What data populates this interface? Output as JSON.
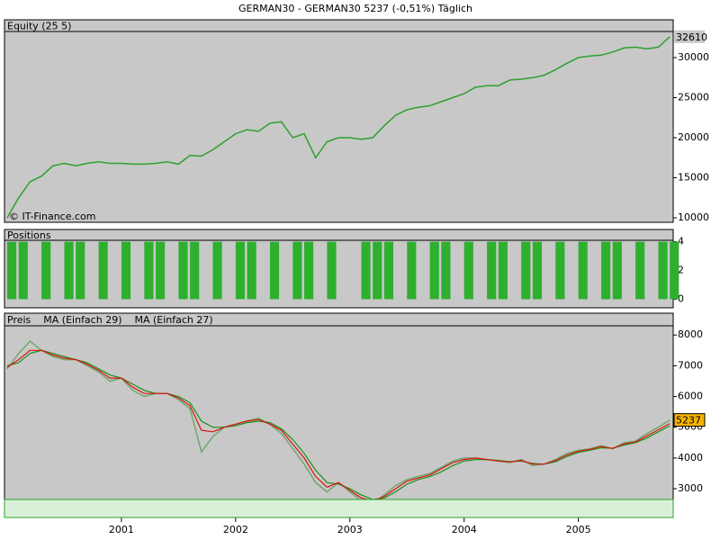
{
  "title": "GERMAN30 - GERMAN30    5237 (-0,51%)    Täglich",
  "watermark": "© IT-Finance.com",
  "chart_data": [
    {
      "type": "line",
      "x": [
        2000.0,
        2000.1,
        2000.2,
        2000.3,
        2000.4,
        2000.5,
        2000.6,
        2000.7,
        2000.8,
        2000.9,
        2001.0,
        2001.1,
        2001.2,
        2001.3,
        2001.4,
        2001.5,
        2001.6,
        2001.7,
        2001.8,
        2001.9,
        2002.0,
        2002.1,
        2002.2,
        2002.3,
        2002.4,
        2002.5,
        2002.6,
        2002.7,
        2002.8,
        2002.9,
        2003.0,
        2003.1,
        2003.2,
        2003.3,
        2003.4,
        2003.5,
        2003.6,
        2003.7,
        2003.8,
        2003.9,
        2004.0,
        2004.1,
        2004.2,
        2004.3,
        2004.4,
        2004.5,
        2004.6,
        2004.7,
        2004.8,
        2004.9,
        2005.0,
        2005.1,
        2005.2,
        2005.3,
        2005.4,
        2005.5,
        2005.6,
        2005.7,
        2005.8
      ],
      "series": [
        {
          "name": "Equity (25 5)",
          "color": "#2ea02e",
          "values": [
            10000,
            12500,
            14500,
            15200,
            16500,
            16800,
            16500,
            16800,
            17000,
            16800,
            16800,
            16700,
            16700,
            16800,
            17000,
            16700,
            17800,
            17700,
            18500,
            19500,
            20500,
            21000,
            20800,
            21800,
            22000,
            20000,
            20500,
            17500,
            19500,
            20000,
            20000,
            19800,
            20000,
            21500,
            22800,
            23500,
            23800,
            24000,
            24500,
            25000,
            25500,
            26300,
            26500,
            26500,
            27200,
            27300,
            27500,
            27800,
            28500,
            29300,
            30000,
            30200,
            30300,
            30700,
            31200,
            31300,
            31100,
            31300,
            32610
          ]
        }
      ],
      "xlim": [
        2000.0,
        2005.83
      ],
      "ylim": [
        9440,
        33260
      ],
      "yticks": [
        10000,
        15000,
        20000,
        25000,
        30000
      ]
    },
    {
      "type": "bar",
      "x": [
        2000.0,
        2000.1,
        2000.2,
        2000.3,
        2000.4,
        2000.5,
        2000.6,
        2000.7,
        2000.8,
        2000.9,
        2001.0,
        2001.1,
        2001.2,
        2001.3,
        2001.4,
        2001.5,
        2001.6,
        2001.7,
        2001.8,
        2001.9,
        2002.0,
        2002.1,
        2002.2,
        2002.3,
        2002.4,
        2002.5,
        2002.6,
        2002.7,
        2002.8,
        2002.9,
        2003.0,
        2003.1,
        2003.2,
        2003.3,
        2003.4,
        2003.5,
        2003.6,
        2003.7,
        2003.8,
        2003.9,
        2004.0,
        2004.1,
        2004.2,
        2004.3,
        2004.4,
        2004.5,
        2004.6,
        2004.7,
        2004.8,
        2004.9,
        2005.0,
        2005.1,
        2005.2,
        2005.3,
        2005.4,
        2005.5,
        2005.6,
        2005.7,
        2005.8
      ],
      "series": [
        {
          "name": "Positions",
          "color": "#2eb02e",
          "values": [
            4,
            4,
            0,
            4,
            0,
            4,
            4,
            0,
            4,
            0,
            4,
            0,
            4,
            4,
            0,
            4,
            4,
            0,
            4,
            0,
            4,
            4,
            0,
            4,
            0,
            4,
            4,
            0,
            4,
            0,
            0,
            4,
            4,
            4,
            0,
            4,
            0,
            4,
            4,
            0,
            4,
            0,
            4,
            4,
            0,
            4,
            4,
            0,
            4,
            0,
            4,
            0,
            4,
            4,
            0,
            4,
            0,
            4,
            4
          ]
        }
      ],
      "xlim": [
        2000.0,
        2005.83
      ],
      "ylim": [
        -0.6,
        4.1
      ],
      "yticks": [
        0,
        2,
        4
      ]
    },
    {
      "type": "line",
      "x": [
        2000.0,
        2000.1,
        2000.2,
        2000.3,
        2000.4,
        2000.5,
        2000.6,
        2000.7,
        2000.8,
        2000.9,
        2001.0,
        2001.1,
        2001.2,
        2001.3,
        2001.4,
        2001.5,
        2001.6,
        2001.7,
        2001.8,
        2001.9,
        2002.0,
        2002.1,
        2002.2,
        2002.3,
        2002.4,
        2002.5,
        2002.6,
        2002.7,
        2002.8,
        2002.9,
        2003.0,
        2003.1,
        2003.2,
        2003.3,
        2003.4,
        2003.5,
        2003.6,
        2003.7,
        2003.8,
        2003.9,
        2004.0,
        2004.1,
        2004.2,
        2004.3,
        2004.4,
        2004.5,
        2004.6,
        2004.7,
        2004.8,
        2004.9,
        2005.0,
        2005.1,
        2005.2,
        2005.3,
        2005.4,
        2005.5,
        2005.6,
        2005.7,
        2005.8
      ],
      "series": [
        {
          "name": "Preis",
          "color": "#6fa86f",
          "values": [
            6900,
            7400,
            7800,
            7500,
            7300,
            7200,
            7200,
            7000,
            6800,
            6500,
            6600,
            6200,
            6000,
            6100,
            6100,
            5900,
            5600,
            4200,
            4700,
            5000,
            5100,
            5200,
            5300,
            5100,
            4800,
            4300,
            3800,
            3200,
            2900,
            3200,
            2900,
            2600,
            2500,
            2800,
            3100,
            3300,
            3400,
            3500,
            3700,
            3900,
            4000,
            4000,
            3950,
            3900,
            3850,
            3950,
            3750,
            3800,
            3950,
            4150,
            4250,
            4300,
            4400,
            4300,
            4500,
            4550,
            4800,
            5000,
            5237
          ]
        },
        {
          "name": "MA (Einfach 29)",
          "color": "#1a8f1a",
          "values": [
            7000,
            7100,
            7400,
            7500,
            7400,
            7300,
            7200,
            7100,
            6900,
            6700,
            6600,
            6400,
            6200,
            6100,
            6100,
            6000,
            5800,
            5200,
            5000,
            5000,
            5050,
            5150,
            5200,
            5150,
            4950,
            4600,
            4150,
            3600,
            3200,
            3150,
            3000,
            2800,
            2650,
            2700,
            2900,
            3150,
            3300,
            3400,
            3550,
            3750,
            3900,
            3950,
            3950,
            3920,
            3880,
            3900,
            3820,
            3800,
            3880,
            4050,
            4180,
            4250,
            4330,
            4320,
            4420,
            4500,
            4650,
            4850,
            5050
          ]
        },
        {
          "name": "MA (Einfach 27)",
          "color": "#e01010",
          "values": [
            6950,
            7200,
            7500,
            7500,
            7350,
            7250,
            7200,
            7050,
            6850,
            6600,
            6600,
            6300,
            6100,
            6100,
            6100,
            5950,
            5700,
            4900,
            4850,
            5000,
            5100,
            5200,
            5250,
            5100,
            4900,
            4450,
            4000,
            3400,
            3050,
            3200,
            2950,
            2700,
            2600,
            2750,
            3000,
            3250,
            3350,
            3450,
            3650,
            3850,
            3950,
            4000,
            3950,
            3900,
            3870,
            3920,
            3800,
            3800,
            3920,
            4100,
            4220,
            4280,
            4370,
            4310,
            4460,
            4520,
            4720,
            4920,
            5120
          ]
        }
      ],
      "xlim": [
        2000.0,
        2005.83
      ],
      "ylim": [
        2650,
        8300
      ],
      "xticks": [
        2001,
        2002,
        2003,
        2004,
        2005
      ],
      "yticks": [
        3000,
        4000,
        5000,
        6000,
        7000,
        8000
      ]
    }
  ]
}
